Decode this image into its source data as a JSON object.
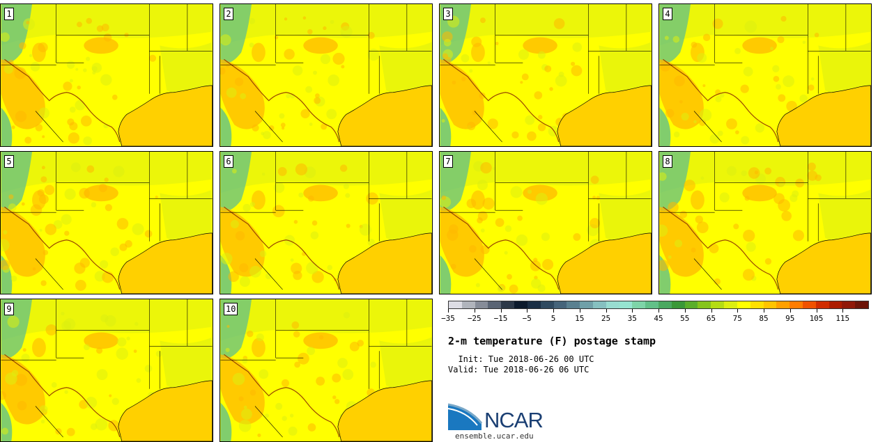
{
  "members": [
    {
      "label": "1"
    },
    {
      "label": "2"
    },
    {
      "label": "3"
    },
    {
      "label": "4"
    },
    {
      "label": "5"
    },
    {
      "label": "6"
    },
    {
      "label": "7"
    },
    {
      "label": "8"
    },
    {
      "label": "9"
    },
    {
      "label": "10"
    }
  ],
  "colorbar": {
    "colors": [
      "#dcdce4",
      "#b0b4bc",
      "#868c98",
      "#5a6474",
      "#2c3848",
      "#0c1a2c",
      "#1a2e44",
      "#304a60",
      "#46647a",
      "#5a8090",
      "#70a0a8",
      "#86c0c0",
      "#98dcd0",
      "#96e4d0",
      "#7ed4a8",
      "#62c088",
      "#4aa860",
      "#3a9838",
      "#5aae2a",
      "#86c41c",
      "#b4dc14",
      "#dcee10",
      "#ffff00",
      "#ffe000",
      "#ffc400",
      "#ffa000",
      "#ff7c00",
      "#f05200",
      "#d02c00",
      "#ac1c00",
      "#901808",
      "#6c1408"
    ],
    "tick_labels": [
      "−35",
      "−25",
      "−15",
      "−5",
      "5",
      "15",
      "25",
      "35",
      "45",
      "55",
      "65",
      "75",
      "85",
      "95",
      "105",
      "115"
    ]
  },
  "title": "2-m temperature (F) postage stamp",
  "init_line": "  Init: Tue 2018-06-26 00 UTC",
  "valid_line": "Valid: Tue 2018-06-26 06 UTC",
  "logo": {
    "text": "NCAR",
    "url": "ensemble.ucar.edu"
  },
  "map_colors": {
    "land": "#ffff00",
    "gulf": "#ffd000",
    "warm": "#ffb800",
    "cool": "#dcee10",
    "mountain": "#62c088"
  }
}
